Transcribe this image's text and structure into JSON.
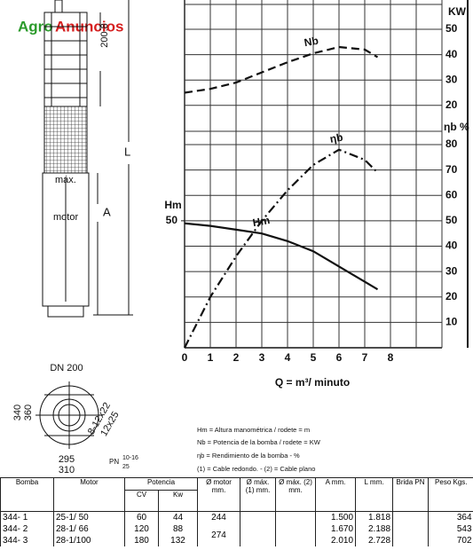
{
  "watermark": {
    "part1": "Agro",
    "part2": "Anuncios"
  },
  "drawing": {
    "dim_top": "200.8",
    "dim_l": "L",
    "dim_a": "A",
    "dia_max": "máx.",
    "dia_motor": "motor",
    "dn": "DN 200",
    "d340": "340",
    "d360": "360",
    "holes1": "8-12x22",
    "holes2": "12x25",
    "d295": "295",
    "d310": "310",
    "pn": "PN",
    "pn1": "10-16",
    "pn2": "25"
  },
  "chart_data": {
    "type": "line",
    "x_label": "Q = m³/ minuto",
    "x": [
      0,
      1,
      2,
      3,
      4,
      5,
      6,
      7,
      7.5
    ],
    "xlim": [
      0,
      10
    ],
    "xticks": [
      0,
      1,
      2,
      3,
      4,
      5,
      6,
      7,
      8
    ],
    "ylim": [
      0,
      80
    ],
    "yticks": [
      10,
      20,
      30,
      40,
      50,
      60,
      70,
      80
    ],
    "y_label": "ηb %",
    "hm_label": "Hm",
    "hm_ticks": [
      50
    ],
    "y2lim": [
      0,
      50
    ],
    "y2ticks": [
      20,
      30,
      40,
      50
    ],
    "y2_label": "KW",
    "grid": true,
    "series": [
      {
        "name": "Nb",
        "axis": "y2",
        "style": "dashed",
        "color": "#111",
        "values": [
          25,
          26.5,
          29,
          33,
          37,
          40.5,
          43,
          42,
          39
        ]
      },
      {
        "name": "ηb",
        "style": "dashdot",
        "color": "#111",
        "values": [
          0,
          20,
          36,
          50,
          62,
          72,
          78,
          74,
          69
        ]
      },
      {
        "name": "Hm",
        "style": "solid",
        "color": "#111",
        "values": [
          49,
          48,
          46.5,
          45,
          42,
          38,
          32,
          26,
          23
        ]
      }
    ]
  },
  "notes": [
    "Hm = Altura manométrica / rodete = m",
    "Nb = Potencia de la bomba / rodete = KW",
    "ηb = Rendimiento de la bomba - %",
    "(1) = Cable redondo. - (2) = Cable plano"
  ],
  "table": {
    "header": [
      "Bomba",
      "Motor",
      "Potencia",
      "Ø motor mm.",
      "Ø máx. (1) mm.",
      "Ø máx. (2) mm.",
      "A mm.",
      "L mm.",
      "Brida PN",
      "Peso Kgs."
    ],
    "subheader": [
      "CV",
      "Kw"
    ],
    "rows": [
      [
        "344- 1",
        "25-1/ 50",
        "60",
        "44",
        "244",
        "1.500",
        "1.818",
        "364"
      ],
      [
        "344- 2",
        "28-1/ 66",
        "120",
        "88",
        "274",
        "1.670",
        "2.188",
        "543"
      ],
      [
        "344- 3",
        "28-1/100",
        "180",
        "132",
        "2.010",
        "2.728",
        "702"
      ]
    ]
  }
}
